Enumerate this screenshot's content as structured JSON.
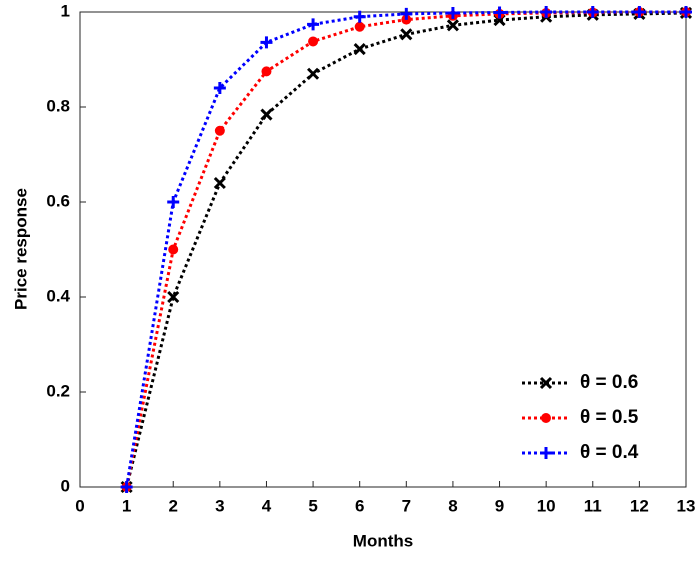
{
  "chart_data": {
    "type": "line",
    "x_label": "Months",
    "y_label": "Price response",
    "x": [
      1,
      2,
      3,
      4,
      5,
      6,
      7,
      8,
      9,
      10,
      11,
      12,
      13
    ],
    "series": [
      {
        "name": "θ = 0.6",
        "color": "#000000",
        "marker": "x",
        "values": [
          0,
          0.4,
          0.64,
          0.784,
          0.87,
          0.922,
          0.953,
          0.972,
          0.983,
          0.99,
          0.994,
          0.996,
          0.998
        ]
      },
      {
        "name": "θ = 0.5",
        "color": "#ff0000",
        "marker": "circle",
        "values": [
          0,
          0.5,
          0.75,
          0.875,
          0.938,
          0.969,
          0.984,
          0.992,
          0.996,
          0.998,
          0.999,
          1,
          1
        ]
      },
      {
        "name": "θ = 0.4",
        "color": "#0000ff",
        "marker": "plus",
        "values": [
          0,
          0.6,
          0.84,
          0.936,
          0.974,
          0.99,
          0.996,
          0.998,
          0.999,
          1,
          1,
          1,
          1
        ]
      }
    ],
    "xlim": [
      0,
      13
    ],
    "xticks": [
      0,
      1,
      2,
      3,
      4,
      5,
      6,
      7,
      8,
      9,
      10,
      11,
      12,
      13
    ],
    "ylim": [
      0,
      1
    ],
    "yticks": [
      0,
      0.2,
      0.4,
      0.6,
      0.8,
      1
    ],
    "grid": false,
    "legend": "lower right"
  }
}
